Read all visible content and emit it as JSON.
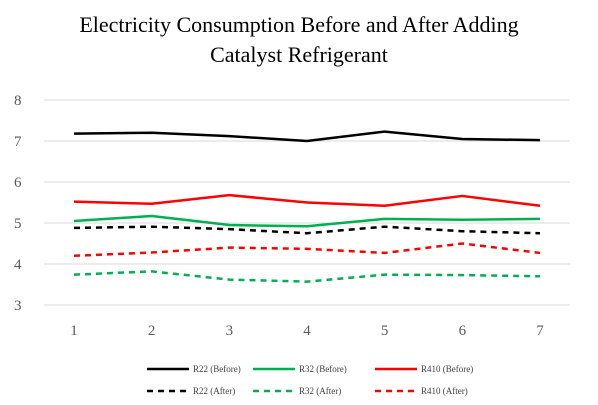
{
  "chart_data": {
    "type": "line",
    "title": "Electricity Consumption Before and After Adding Catalyst Refrigerant",
    "title_lines": [
      "Electricity  Consumption Before and After Adding",
      "Catalyst Refrigerant"
    ],
    "xlabel": "",
    "ylabel": "",
    "x": [
      1,
      2,
      3,
      4,
      5,
      6,
      7
    ],
    "ylim": [
      3,
      8
    ],
    "yticks": [
      3,
      4,
      5,
      6,
      7,
      8
    ],
    "grid": "horizontal",
    "legend_position": "bottom",
    "series": [
      {
        "name": "R22 (Before)",
        "color": "#000000",
        "dash": "solid",
        "values": [
          7.18,
          7.2,
          7.12,
          7.0,
          7.23,
          7.05,
          7.02
        ]
      },
      {
        "name": "R32 (Before)",
        "color": "#00b050",
        "dash": "solid",
        "values": [
          5.05,
          5.17,
          4.95,
          4.92,
          5.1,
          5.08,
          5.1
        ]
      },
      {
        "name": "R410 (Before)",
        "color": "#ff0000",
        "dash": "solid",
        "values": [
          5.52,
          5.47,
          5.68,
          5.5,
          5.42,
          5.66,
          5.42
        ]
      },
      {
        "name": "R22 (After)",
        "color": "#000000",
        "dash": "dashed",
        "values": [
          4.88,
          4.91,
          4.85,
          4.75,
          4.91,
          4.8,
          4.75
        ]
      },
      {
        "name": "R32 (After)",
        "color": "#00b050",
        "dash": "dashed",
        "values": [
          3.74,
          3.82,
          3.62,
          3.57,
          3.74,
          3.73,
          3.7
        ]
      },
      {
        "name": "R410 (After)",
        "color": "#ff0000",
        "dash": "dashed",
        "values": [
          4.2,
          4.28,
          4.4,
          4.37,
          4.27,
          4.5,
          4.27
        ]
      }
    ]
  }
}
